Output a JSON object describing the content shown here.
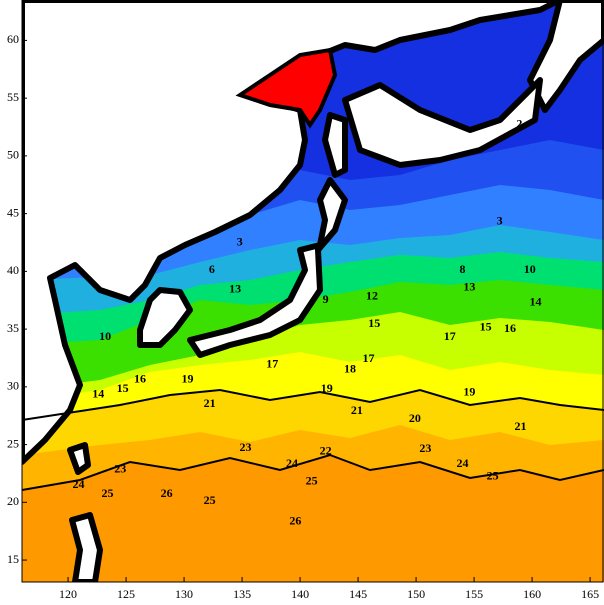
{
  "chart_data": {
    "type": "contour",
    "xlim": [
      116.03,
      166.2
    ],
    "ylim": [
      13.1,
      63.5
    ],
    "xticks": [
      120,
      125,
      130,
      135,
      140,
      145,
      150,
      155,
      160,
      165
    ],
    "yticks": [
      15,
      20,
      25,
      30,
      35,
      40,
      45,
      50,
      55,
      60
    ],
    "contour_labels": [
      {
        "value": 21,
        "lon": 159.0,
        "lat": 26.5
      },
      {
        "value": 19,
        "lon": 154.6,
        "lat": 29.5
      },
      {
        "value": 17,
        "lon": 152.9,
        "lat": 34.3
      },
      {
        "value": 16,
        "lon": 158.1,
        "lat": 35.0
      },
      {
        "value": 15,
        "lon": 156.0,
        "lat": 35.1
      },
      {
        "value": 14,
        "lon": 160.3,
        "lat": 37.3
      },
      {
        "value": 13,
        "lon": 154.6,
        "lat": 38.6
      },
      {
        "value": 10,
        "lon": 159.8,
        "lat": 40.1
      },
      {
        "value": 8,
        "lon": 154.0,
        "lat": 40.1
      },
      {
        "value": 3,
        "lon": 157.2,
        "lat": 44.3
      },
      {
        "value": 2,
        "lon": 158.9,
        "lat": 52.7
      },
      {
        "value": 20,
        "lon": 149.9,
        "lat": 27.2
      },
      {
        "value": 21,
        "lon": 144.9,
        "lat": 27.9
      },
      {
        "value": 19,
        "lon": 142.3,
        "lat": 29.8
      },
      {
        "value": 18,
        "lon": 144.3,
        "lat": 31.5
      },
      {
        "value": 17,
        "lon": 145.9,
        "lat": 32.4
      },
      {
        "value": 23,
        "lon": 150.8,
        "lat": 24.6
      },
      {
        "value": 24,
        "lon": 154.0,
        "lat": 23.3
      },
      {
        "value": 25,
        "lon": 156.6,
        "lat": 22.2
      },
      {
        "value": 22,
        "lon": 142.2,
        "lat": 24.4
      },
      {
        "value": 23,
        "lon": 135.3,
        "lat": 24.7
      },
      {
        "value": 24,
        "lon": 139.3,
        "lat": 23.3
      },
      {
        "value": 25,
        "lon": 141.0,
        "lat": 21.8
      },
      {
        "value": 26,
        "lon": 139.6,
        "lat": 18.3
      },
      {
        "value": 23,
        "lon": 124.5,
        "lat": 22.8
      },
      {
        "value": 25,
        "lon": 123.4,
        "lat": 20.7
      },
      {
        "value": 26,
        "lon": 128.5,
        "lat": 20.7
      },
      {
        "value": 25,
        "lon": 132.2,
        "lat": 20.1
      },
      {
        "value": 24,
        "lon": 120.9,
        "lat": 21.5
      },
      {
        "value": 21,
        "lon": 132.2,
        "lat": 28.5
      },
      {
        "value": 19,
        "lon": 130.3,
        "lat": 30.6
      },
      {
        "value": 17,
        "lon": 137.6,
        "lat": 31.9
      },
      {
        "value": 15,
        "lon": 124.7,
        "lat": 29.8
      },
      {
        "value": 16,
        "lon": 126.2,
        "lat": 30.6
      },
      {
        "value": 14,
        "lon": 122.6,
        "lat": 29.3
      },
      {
        "value": 10,
        "lon": 123.2,
        "lat": 34.3
      },
      {
        "value": 6,
        "lon": 132.4,
        "lat": 40.1
      },
      {
        "value": 3,
        "lon": 134.8,
        "lat": 42.5
      },
      {
        "value": 13,
        "lon": 134.4,
        "lat": 38.4
      },
      {
        "value": 12,
        "lon": 146.2,
        "lat": 37.8
      },
      {
        "value": 9,
        "lon": 142.2,
        "lat": 37.5
      },
      {
        "value": 15,
        "lon": 146.4,
        "lat": 35.4
      }
    ]
  }
}
